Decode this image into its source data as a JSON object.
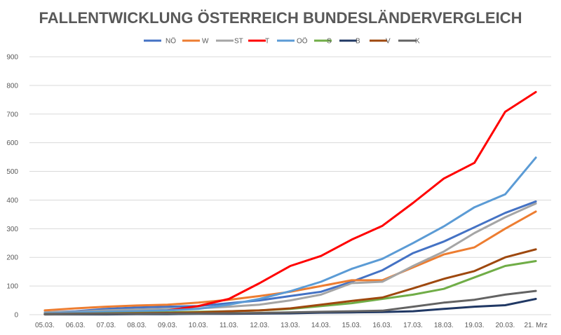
{
  "chart_data": {
    "type": "line",
    "title": "FALLENTWICKLUNG ÖSTERREICH BUNDESLÄNDERVERGLEICH",
    "xlabel": "",
    "ylabel": "",
    "ylim": [
      0,
      900
    ],
    "yticks": [
      0,
      100,
      200,
      300,
      400,
      500,
      600,
      700,
      800,
      900
    ],
    "grid": true,
    "legend_position": "top",
    "categories": [
      "05.03.",
      "06.03.",
      "07.03.",
      "08.03.",
      "09.03.",
      "10.03.",
      "11.03.",
      "12.03.",
      "13.03.",
      "14.03.",
      "15.03.",
      "16.03.",
      "17.03.",
      "18.03.",
      "19.03.",
      "20.03.",
      "21. Mrz"
    ],
    "series": [
      {
        "name": "NÖ",
        "color": "#4472c4",
        "values": [
          8,
          12,
          20,
          25,
          28,
          30,
          40,
          50,
          65,
          80,
          115,
          155,
          215,
          255,
          305,
          355,
          395
        ]
      },
      {
        "name": "W",
        "color": "#ed7d31",
        "values": [
          15,
          22,
          28,
          32,
          35,
          42,
          52,
          65,
          80,
          100,
          120,
          120,
          165,
          210,
          235,
          300,
          360
        ]
      },
      {
        "name": "ST",
        "color": "#a5a5a5",
        "values": [
          8,
          10,
          15,
          18,
          20,
          22,
          28,
          35,
          50,
          70,
          110,
          115,
          170,
          220,
          285,
          340,
          388
        ]
      },
      {
        "name": "T",
        "color": "#ff0000",
        "values": [
          3,
          5,
          8,
          10,
          15,
          30,
          55,
          110,
          170,
          205,
          262,
          310,
          390,
          475,
          530,
          708,
          777
        ]
      },
      {
        "name": "OÖ",
        "color": "#5b9bd5",
        "values": [
          5,
          8,
          10,
          12,
          15,
          20,
          35,
          55,
          82,
          115,
          160,
          195,
          250,
          308,
          375,
          420,
          548
        ]
      },
      {
        "name": "S",
        "color": "#70ad47",
        "values": [
          2,
          3,
          5,
          6,
          8,
          10,
          12,
          15,
          20,
          30,
          40,
          55,
          70,
          90,
          130,
          170,
          187
        ]
      },
      {
        "name": "B",
        "color": "#203864",
        "values": [
          1,
          1,
          1,
          2,
          2,
          3,
          3,
          4,
          5,
          7,
          8,
          9,
          12,
          20,
          28,
          33,
          55
        ]
      },
      {
        "name": "V",
        "color": "#9e480e",
        "values": [
          2,
          3,
          4,
          5,
          6,
          8,
          12,
          15,
          22,
          35,
          48,
          60,
          92,
          125,
          152,
          200,
          228
        ]
      },
      {
        "name": "K",
        "color": "#636363",
        "values": [
          1,
          2,
          3,
          3,
          4,
          4,
          5,
          6,
          8,
          10,
          12,
          14,
          28,
          42,
          52,
          70,
          83
        ]
      }
    ]
  }
}
